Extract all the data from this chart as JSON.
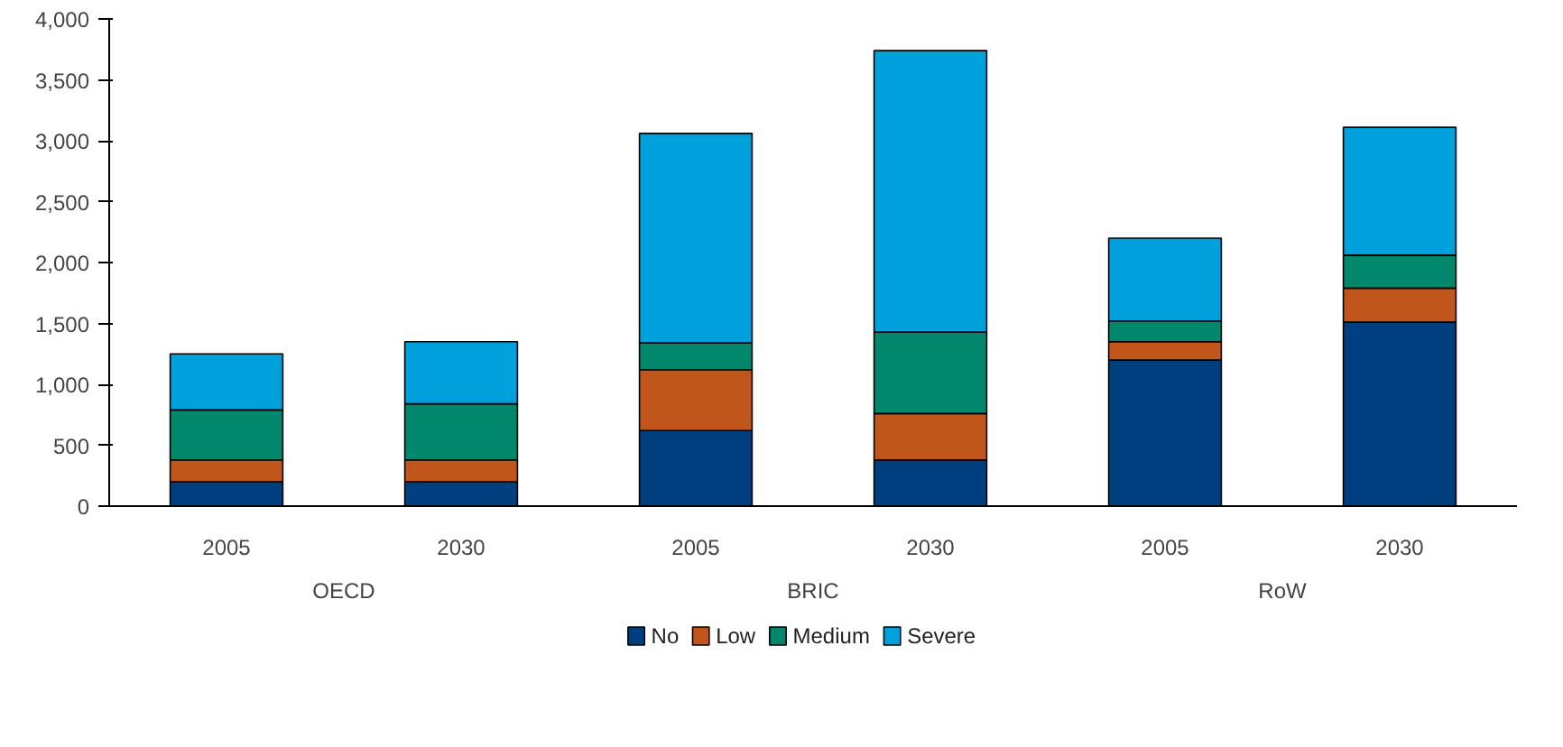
{
  "chart_data": {
    "type": "bar",
    "stacked": true,
    "categories": [
      "2005",
      "2030",
      "2005",
      "2030",
      "2005",
      "2030"
    ],
    "annotations": [
      "OECD",
      "BRIC",
      "RoW"
    ],
    "series": [
      {
        "name": "No",
        "color": "#003f7f",
        "values": [
          200,
          200,
          620,
          380,
          1200,
          1510
        ]
      },
      {
        "name": "Low",
        "color": "#c0561b",
        "values": [
          180,
          180,
          500,
          380,
          150,
          280
        ]
      },
      {
        "name": "Medium",
        "color": "#00876c",
        "values": [
          410,
          460,
          220,
          670,
          170,
          270
        ]
      },
      {
        "name": "Severe",
        "color": "#00a0dc",
        "values": [
          460,
          510,
          1720,
          2310,
          680,
          1050
        ]
      }
    ],
    "ylim": [
      0,
      4000
    ],
    "yticks": [
      0,
      500,
      {
        "value": 1000,
        "label": "1,000"
      },
      {
        "value": 1500,
        "label": "1,500"
      },
      {
        "value": 2000,
        "label": "2,000"
      },
      {
        "value": 2500,
        "label": "2,500"
      },
      {
        "value": 3000,
        "label": "3,000"
      },
      {
        "value": 3500,
        "label": "3,500"
      },
      {
        "value": 4000,
        "label": "4,000"
      }
    ],
    "grid": false,
    "legend": "bottom"
  }
}
